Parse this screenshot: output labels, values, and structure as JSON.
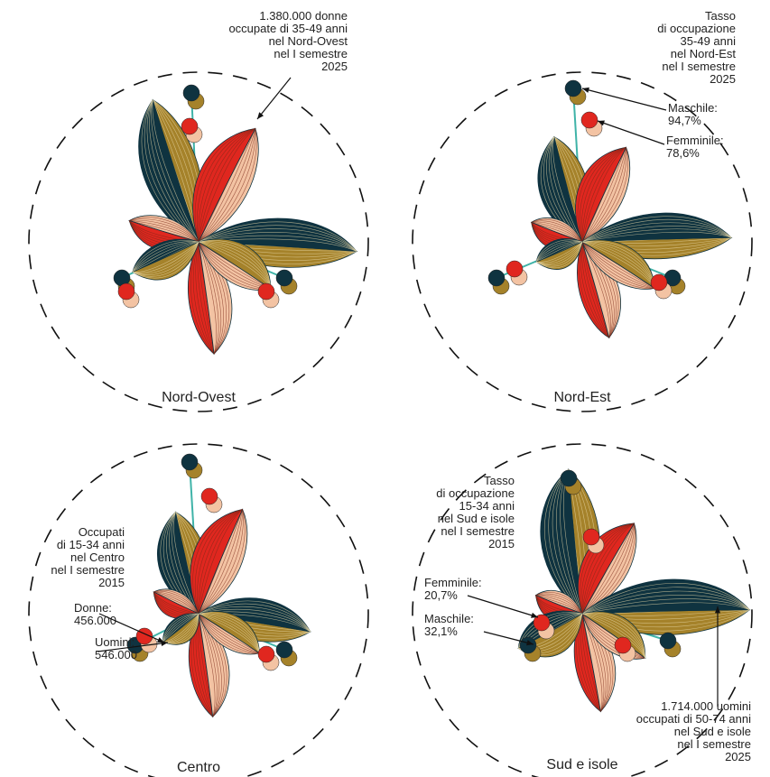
{
  "panels": [
    {
      "name": "Nord-Ovest",
      "annotations": [
        {
          "lines": [
            "1.380.000 donne",
            "occupate di 35-49 anni",
            "nel Nord-Ovest",
            "nel I semestre",
            "2025"
          ]
        }
      ]
    },
    {
      "name": "Nord-Est",
      "annotations": [
        {
          "lines": [
            "Tasso",
            "di occupazione",
            "35-49 anni",
            "nel Nord-Est",
            "nel I semestre",
            "2025"
          ]
        },
        {
          "lines": [
            "Maschile:",
            "94,7%"
          ]
        },
        {
          "lines": [
            "Femminile:",
            "78,6%"
          ]
        }
      ]
    },
    {
      "name": "Centro",
      "annotations": [
        {
          "lines": [
            "Occupati",
            "di 15-34 anni",
            "nel Centro",
            "nel I semestre",
            "2015"
          ]
        },
        {
          "lines": [
            "Donne:",
            "456.000"
          ]
        },
        {
          "lines": [
            "Uomini:",
            "546.000"
          ]
        }
      ]
    },
    {
      "name": "Sud e isole",
      "annotations": [
        {
          "lines": [
            "Tasso",
            "di occupazione",
            "15-34 anni",
            "nel Sud e isole",
            "nel I semestre",
            "2015"
          ]
        },
        {
          "lines": [
            "Femminile:",
            "20,7%"
          ]
        },
        {
          "lines": [
            "Maschile:",
            "32,1%"
          ]
        },
        {
          "lines": [
            "1.714.000 uomini",
            "occupati di 50-74 anni",
            "nel Sud e isole",
            "nel I semestre",
            "2025"
          ]
        }
      ]
    }
  ]
}
